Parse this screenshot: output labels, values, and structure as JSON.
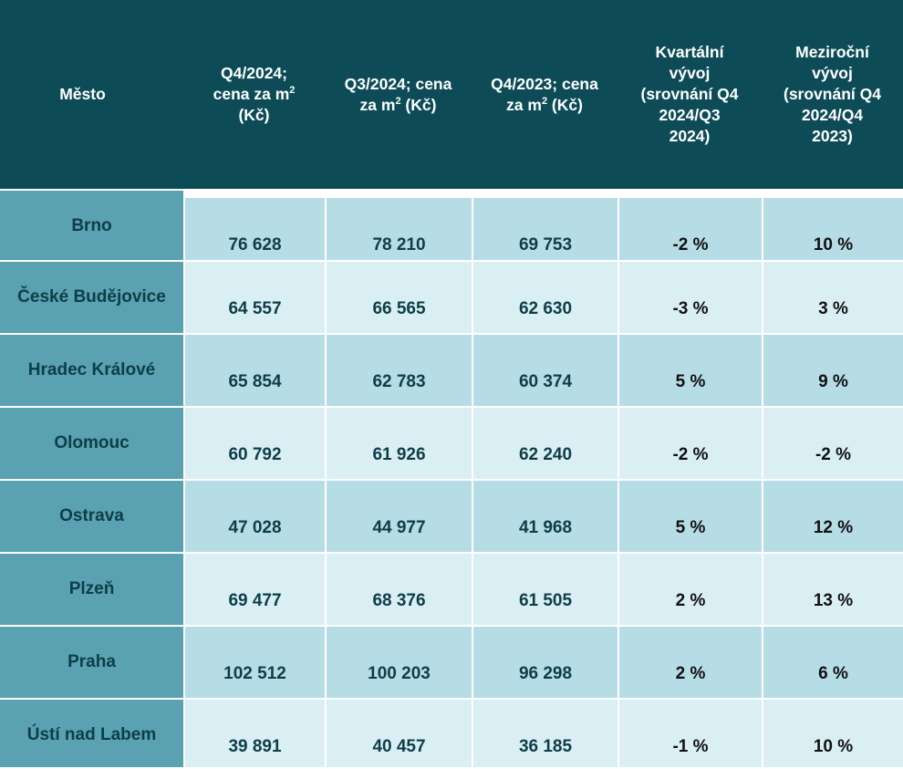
{
  "header": {
    "city": "Město",
    "q4_2024_line1": "Q4/2024;",
    "q4_2024_line2": "cena za m",
    "q4_2024_line3": "(Kč)",
    "q3_2024_line1": "Q3/2024;  cena",
    "q3_2024_line2": "za m",
    "q3_2024_line2b": " (Kč)",
    "q4_2023_line1": "Q4/2023; cena",
    "q4_2023_line2": "za m",
    "q4_2023_line2b": " (Kč)",
    "quarterly_line1": "Kvartální",
    "quarterly_line2": "vývoj",
    "quarterly_line3": "(srovnání Q4",
    "quarterly_line4": "2024/Q3",
    "quarterly_line5": "2024)",
    "yoy_line1": "Meziroční",
    "yoy_line2": "vývoj",
    "yoy_line3": "(srovnání Q4",
    "yoy_line4": "2024/Q4",
    "yoy_line5": "2023)",
    "superscript": "2"
  },
  "rows": [
    {
      "city": "Brno",
      "q4_2024": "76 628",
      "q3_2024": "78 210",
      "q4_2023": "69 753",
      "qoq": "-2 %",
      "yoy": "10 %"
    },
    {
      "city": "České Budějovice",
      "q4_2024": "64 557",
      "q3_2024": "66 565",
      "q4_2023": "62 630",
      "qoq": "-3 %",
      "yoy": "3 %"
    },
    {
      "city": "Hradec Králové",
      "q4_2024": "65 854",
      "q3_2024": "62 783",
      "q4_2023": "60 374",
      "qoq": "5 %",
      "yoy": "9 %"
    },
    {
      "city": "Olomouc",
      "q4_2024": "60 792",
      "q3_2024": "61 926",
      "q4_2023": "62 240",
      "qoq": "-2 %",
      "yoy": "-2 %"
    },
    {
      "city": "Ostrava",
      "q4_2024": "47 028",
      "q3_2024": "44 977",
      "q4_2023": "41 968",
      "qoq": "5 %",
      "yoy": "12 %"
    },
    {
      "city": "Plzeň",
      "q4_2024": "69 477",
      "q3_2024": "68 376",
      "q4_2023": "61 505",
      "qoq": "2 %",
      "yoy": "13 %"
    },
    {
      "city": "Praha",
      "q4_2024": "102 512",
      "q3_2024": "100 203",
      "q4_2023": "96 298",
      "qoq": "2 %",
      "yoy": "6 %"
    },
    {
      "city": "Ústí nad Labem",
      "q4_2024": "39 891",
      "q3_2024": "40 457",
      "q4_2023": "36 185",
      "qoq": "-1 %",
      "yoy": "10 %"
    }
  ],
  "colors": {
    "header_bg": "#0d4c57",
    "city_bg": "#5aa1b1",
    "row_dark": "#b6dce6",
    "row_light": "#daeff4",
    "text_dark": "#0d3e48"
  }
}
